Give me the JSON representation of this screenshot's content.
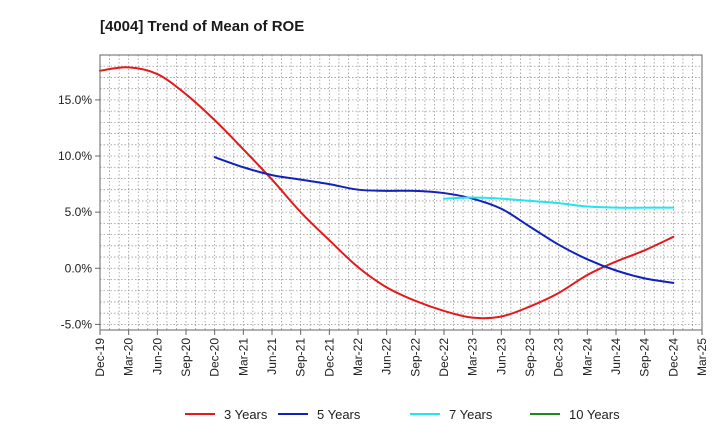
{
  "chart_data": {
    "type": "line",
    "title": "[4004]  Trend of Mean of ROE",
    "xlabel": "",
    "ylabel": "",
    "x_ticks": [
      "Dec-19",
      "Mar-20",
      "Jun-20",
      "Sep-20",
      "Dec-20",
      "Mar-21",
      "Jun-21",
      "Sep-21",
      "Dec-21",
      "Mar-22",
      "Jun-22",
      "Sep-22",
      "Dec-22",
      "Mar-23",
      "Jun-23",
      "Sep-23",
      "Dec-23",
      "Mar-24",
      "Jun-24",
      "Sep-24",
      "Dec-24",
      "Mar-25"
    ],
    "y_ticks": [
      15,
      10,
      5,
      0,
      -5
    ],
    "y_tick_labels": [
      "15.0%",
      "10.0%",
      "5.0%",
      "0.0%",
      "-5.0%"
    ],
    "ylim": [
      -5.5,
      19.0
    ],
    "grid": true,
    "legend_position": "bottom",
    "series": [
      {
        "name": "3 Years",
        "color": "#e31a1c",
        "points": [
          [
            "Dec-19",
            17.6
          ],
          [
            "Mar-20",
            17.9
          ],
          [
            "Jun-20",
            17.3
          ],
          [
            "Sep-20",
            15.5
          ],
          [
            "Dec-20",
            13.2
          ],
          [
            "Mar-21",
            10.6
          ],
          [
            "Jun-21",
            7.9
          ],
          [
            "Sep-21",
            5.0
          ],
          [
            "Dec-21",
            2.5
          ],
          [
            "Mar-22",
            0.1
          ],
          [
            "Jun-22",
            -1.7
          ],
          [
            "Sep-22",
            -2.9
          ],
          [
            "Dec-22",
            -3.8
          ],
          [
            "Mar-23",
            -4.4
          ],
          [
            "Jun-23",
            -4.3
          ],
          [
            "Sep-23",
            -3.4
          ],
          [
            "Dec-23",
            -2.2
          ],
          [
            "Mar-24",
            -0.6
          ],
          [
            "Jun-24",
            0.6
          ],
          [
            "Sep-24",
            1.6
          ],
          [
            "Dec-24",
            2.8
          ]
        ]
      },
      {
        "name": "5 Years",
        "color": "#1122bb",
        "points": [
          [
            "Dec-20",
            9.9
          ],
          [
            "Mar-21",
            9.0
          ],
          [
            "Jun-21",
            8.3
          ],
          [
            "Sep-21",
            7.9
          ],
          [
            "Dec-21",
            7.5
          ],
          [
            "Mar-22",
            7.0
          ],
          [
            "Jun-22",
            6.9
          ],
          [
            "Sep-22",
            6.9
          ],
          [
            "Dec-22",
            6.7
          ],
          [
            "Mar-23",
            6.2
          ],
          [
            "Jun-23",
            5.3
          ],
          [
            "Sep-23",
            3.7
          ],
          [
            "Dec-23",
            2.1
          ],
          [
            "Mar-24",
            0.8
          ],
          [
            "Jun-24",
            -0.2
          ],
          [
            "Sep-24",
            -0.9
          ],
          [
            "Dec-24",
            -1.3
          ]
        ]
      },
      {
        "name": "7 Years",
        "color": "#22e5f0",
        "points": [
          [
            "Dec-22",
            6.2
          ],
          [
            "Mar-23",
            6.3
          ],
          [
            "Jun-23",
            6.2
          ],
          [
            "Sep-23",
            6.0
          ],
          [
            "Dec-23",
            5.8
          ],
          [
            "Mar-24",
            5.5
          ],
          [
            "Jun-24",
            5.4
          ],
          [
            "Sep-24",
            5.4
          ],
          [
            "Dec-24",
            5.4
          ]
        ]
      },
      {
        "name": "10 Years",
        "color": "#1a8a1a",
        "points": []
      }
    ]
  }
}
